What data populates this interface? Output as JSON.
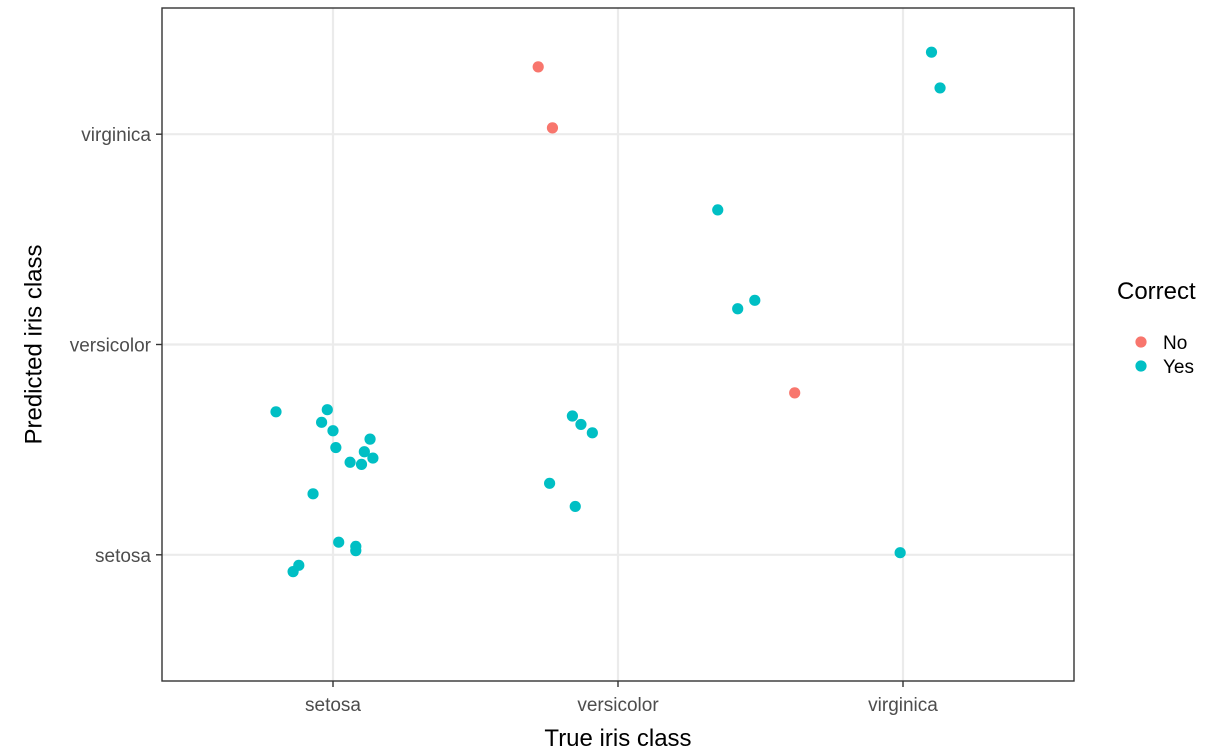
{
  "chart_data": {
    "type": "scatter",
    "xlabel": "True iris class",
    "ylabel": "Predicted iris class",
    "x_categories": [
      "setosa",
      "versicolor",
      "virginica"
    ],
    "y_categories": [
      "setosa",
      "versicolor",
      "virginica"
    ],
    "xlim": [
      0.4,
      3.6
    ],
    "ylim": [
      0.4,
      3.6
    ],
    "grid": true,
    "legend": {
      "title": "Correct",
      "position": "right",
      "entries": [
        {
          "label": "No",
          "color": "#F8766D"
        },
        {
          "label": "Yes",
          "color": "#00BFC4"
        }
      ]
    },
    "series": [
      {
        "name": "No",
        "color": "#F8766D",
        "points": [
          {
            "x": 1.72,
            "y": 3.32
          },
          {
            "x": 1.77,
            "y": 3.03
          },
          {
            "x": 2.62,
            "y": 1.77
          }
        ]
      },
      {
        "name": "Yes",
        "color": "#00BFC4",
        "points": [
          {
            "x": 2.99,
            "y": 1.01
          },
          {
            "x": 1.85,
            "y": 1.23
          },
          {
            "x": 1.08,
            "y": 1.02
          },
          {
            "x": 0.8,
            "y": 1.68
          },
          {
            "x": 1.87,
            "y": 1.62
          },
          {
            "x": 1.84,
            "y": 1.66
          },
          {
            "x": 1.91,
            "y": 1.58
          },
          {
            "x": 1.76,
            "y": 1.34
          },
          {
            "x": 0.86,
            "y": 0.92
          },
          {
            "x": 0.88,
            "y": 0.95
          },
          {
            "x": 0.93,
            "y": 1.29
          },
          {
            "x": 0.96,
            "y": 1.63
          },
          {
            "x": 1.0,
            "y": 1.59
          },
          {
            "x": 1.06,
            "y": 1.44
          },
          {
            "x": 1.14,
            "y": 1.46
          },
          {
            "x": 1.11,
            "y": 1.49
          },
          {
            "x": 1.01,
            "y": 1.51
          },
          {
            "x": 1.08,
            "y": 1.04
          },
          {
            "x": 1.02,
            "y": 1.06
          },
          {
            "x": 0.98,
            "y": 1.69
          },
          {
            "x": 1.13,
            "y": 1.55
          },
          {
            "x": 1.1,
            "y": 1.43
          },
          {
            "x": 2.35,
            "y": 2.64
          },
          {
            "x": 2.48,
            "y": 2.21
          },
          {
            "x": 2.42,
            "y": 2.17
          },
          {
            "x": 3.1,
            "y": 3.39
          },
          {
            "x": 3.13,
            "y": 3.22
          }
        ]
      }
    ]
  }
}
